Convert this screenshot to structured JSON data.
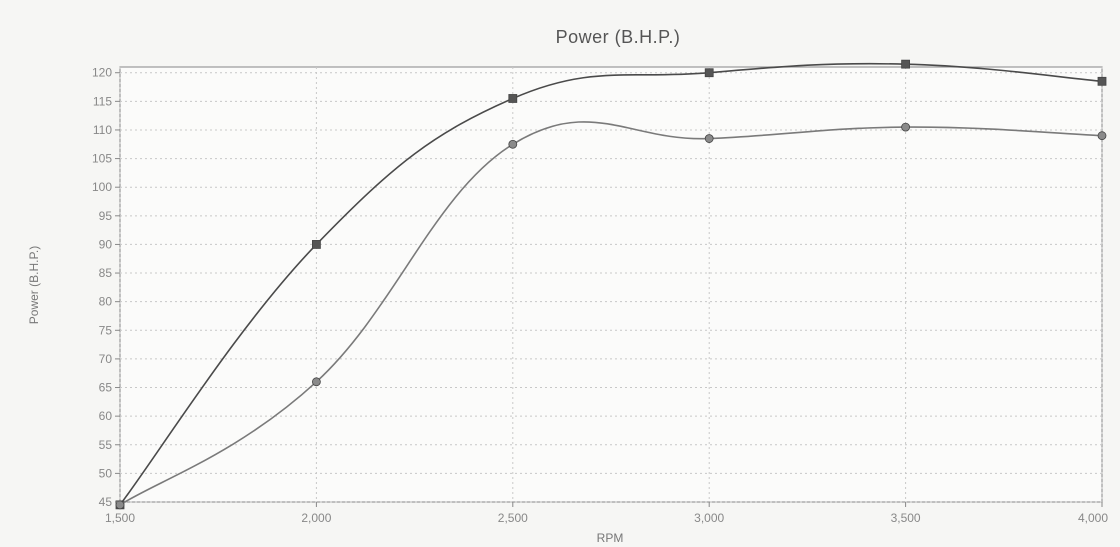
{
  "chart_data": {
    "type": "line",
    "title": "Power (B.H.P.)",
    "xlabel": "RPM",
    "ylabel": "Power (B.H.P.)",
    "xlim": [
      1500,
      4000
    ],
    "ylim": [
      45,
      121
    ],
    "x_ticks": [
      1500,
      2000,
      2500,
      3000,
      3500,
      4000
    ],
    "x_tick_labels": [
      "1,500",
      "2,000",
      "2,500",
      "3,000",
      "3,500",
      "4,000"
    ],
    "y_ticks": [
      45,
      50,
      55,
      60,
      65,
      70,
      75,
      80,
      85,
      90,
      95,
      100,
      105,
      110,
      115,
      120
    ],
    "y_tick_labels": [
      "45",
      "50",
      "55",
      "60",
      "65",
      "70",
      "75",
      "80",
      "85",
      "90",
      "95",
      "100",
      "105",
      "110",
      "115",
      "120"
    ],
    "grid": true,
    "legend": "none",
    "series": [
      {
        "x": [
          1500,
          2000,
          2500,
          3000,
          3500,
          4000
        ],
        "values": [
          44.5,
          90,
          115.5,
          120,
          121.5,
          118.5
        ],
        "color": "#4a4a4a",
        "marker": "square"
      },
      {
        "x": [
          1500,
          2000,
          2500,
          3000,
          3500,
          4000
        ],
        "values": [
          44.5,
          66,
          107.5,
          108.5,
          110.5,
          109
        ],
        "color": "#7a7a7a",
        "marker": "circle"
      }
    ]
  }
}
